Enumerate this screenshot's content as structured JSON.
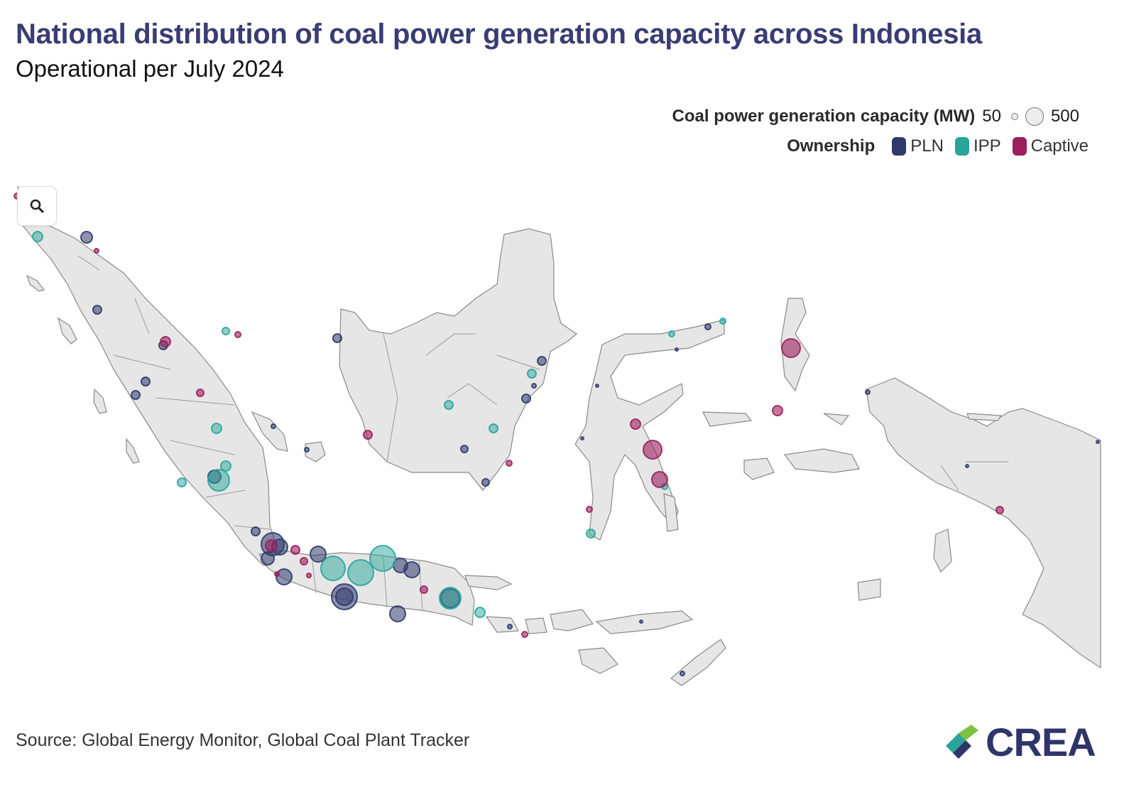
{
  "title": "National distribution of coal power generation capacity across Indonesia",
  "subtitle": "Operational per July 2024",
  "legend": {
    "size_title": "Coal power generation capacity (MW)",
    "size_min": "50",
    "size_max": "500",
    "ownership_title": "Ownership",
    "ownership": [
      {
        "label": "PLN",
        "color": "#2f3a6b"
      },
      {
        "label": "IPP",
        "color": "#2aa59a"
      },
      {
        "label": "Captive",
        "color": "#9b1f5c"
      }
    ]
  },
  "zoom_icon": "search-icon",
  "source": "Source: Global Energy Monitor, Global Coal Plant Tracker",
  "logo": {
    "text": "CREA",
    "icon": "crea-logo-icon"
  },
  "colors": {
    "PLN": "#2f3a6b",
    "IPP": "#2aa59a",
    "Captive": "#9b1f5c",
    "land": "#e6e6e6"
  }
}
